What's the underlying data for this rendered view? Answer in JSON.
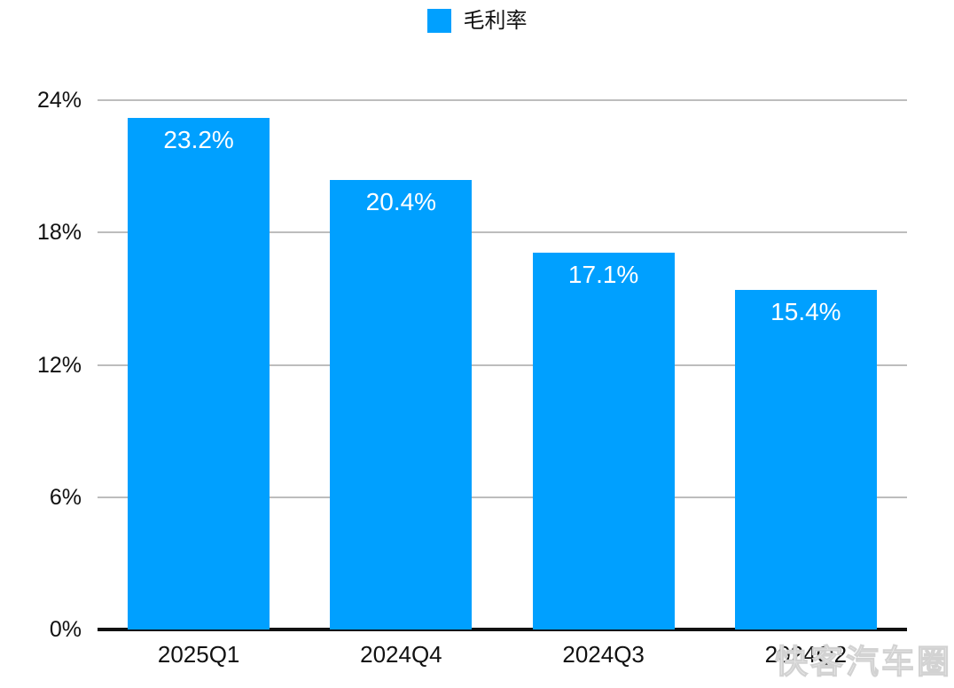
{
  "legend": {
    "label": "毛利率",
    "color": "#00A0FF"
  },
  "watermark": "快客汽车圈",
  "chart_data": {
    "type": "bar",
    "title": "",
    "series_name": "毛利率",
    "categories": [
      "2025Q1",
      "2024Q4",
      "2024Q3",
      "2024Q2"
    ],
    "values": [
      23.2,
      20.4,
      17.1,
      15.4
    ],
    "value_labels": [
      "23.2%",
      "20.4%",
      "17.1%",
      "15.4%"
    ],
    "xlabel": "",
    "ylabel": "",
    "ylim": [
      0,
      24
    ],
    "ytick_values": [
      0,
      6,
      12,
      18,
      24
    ],
    "ytick_labels": [
      "0%",
      "6%",
      "12%",
      "18%",
      "24%"
    ],
    "bar_color": "#00A0FF",
    "data_label_color": "#ffffff",
    "grid": true,
    "gridline_color": "#bdbdbd",
    "axis_color": "#111111",
    "legend_position": "top"
  }
}
